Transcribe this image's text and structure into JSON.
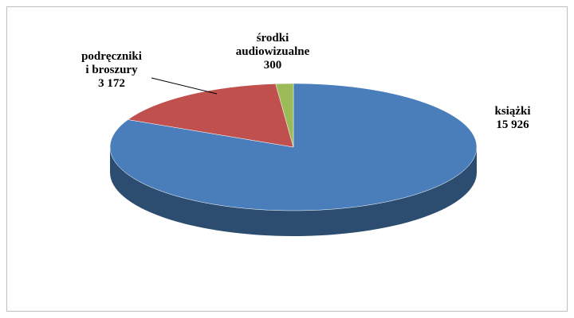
{
  "chart_data": {
    "type": "pie",
    "categories": [
      "książki",
      "podręczniki\ni broszury",
      "środki\naudiowizualne"
    ],
    "values": [
      15926,
      3172,
      300
    ],
    "value_labels": [
      "15 926",
      "3 172",
      "300"
    ],
    "colors": [
      "#4a7ebb",
      "#c0504d",
      "#9bbb59"
    ]
  }
}
